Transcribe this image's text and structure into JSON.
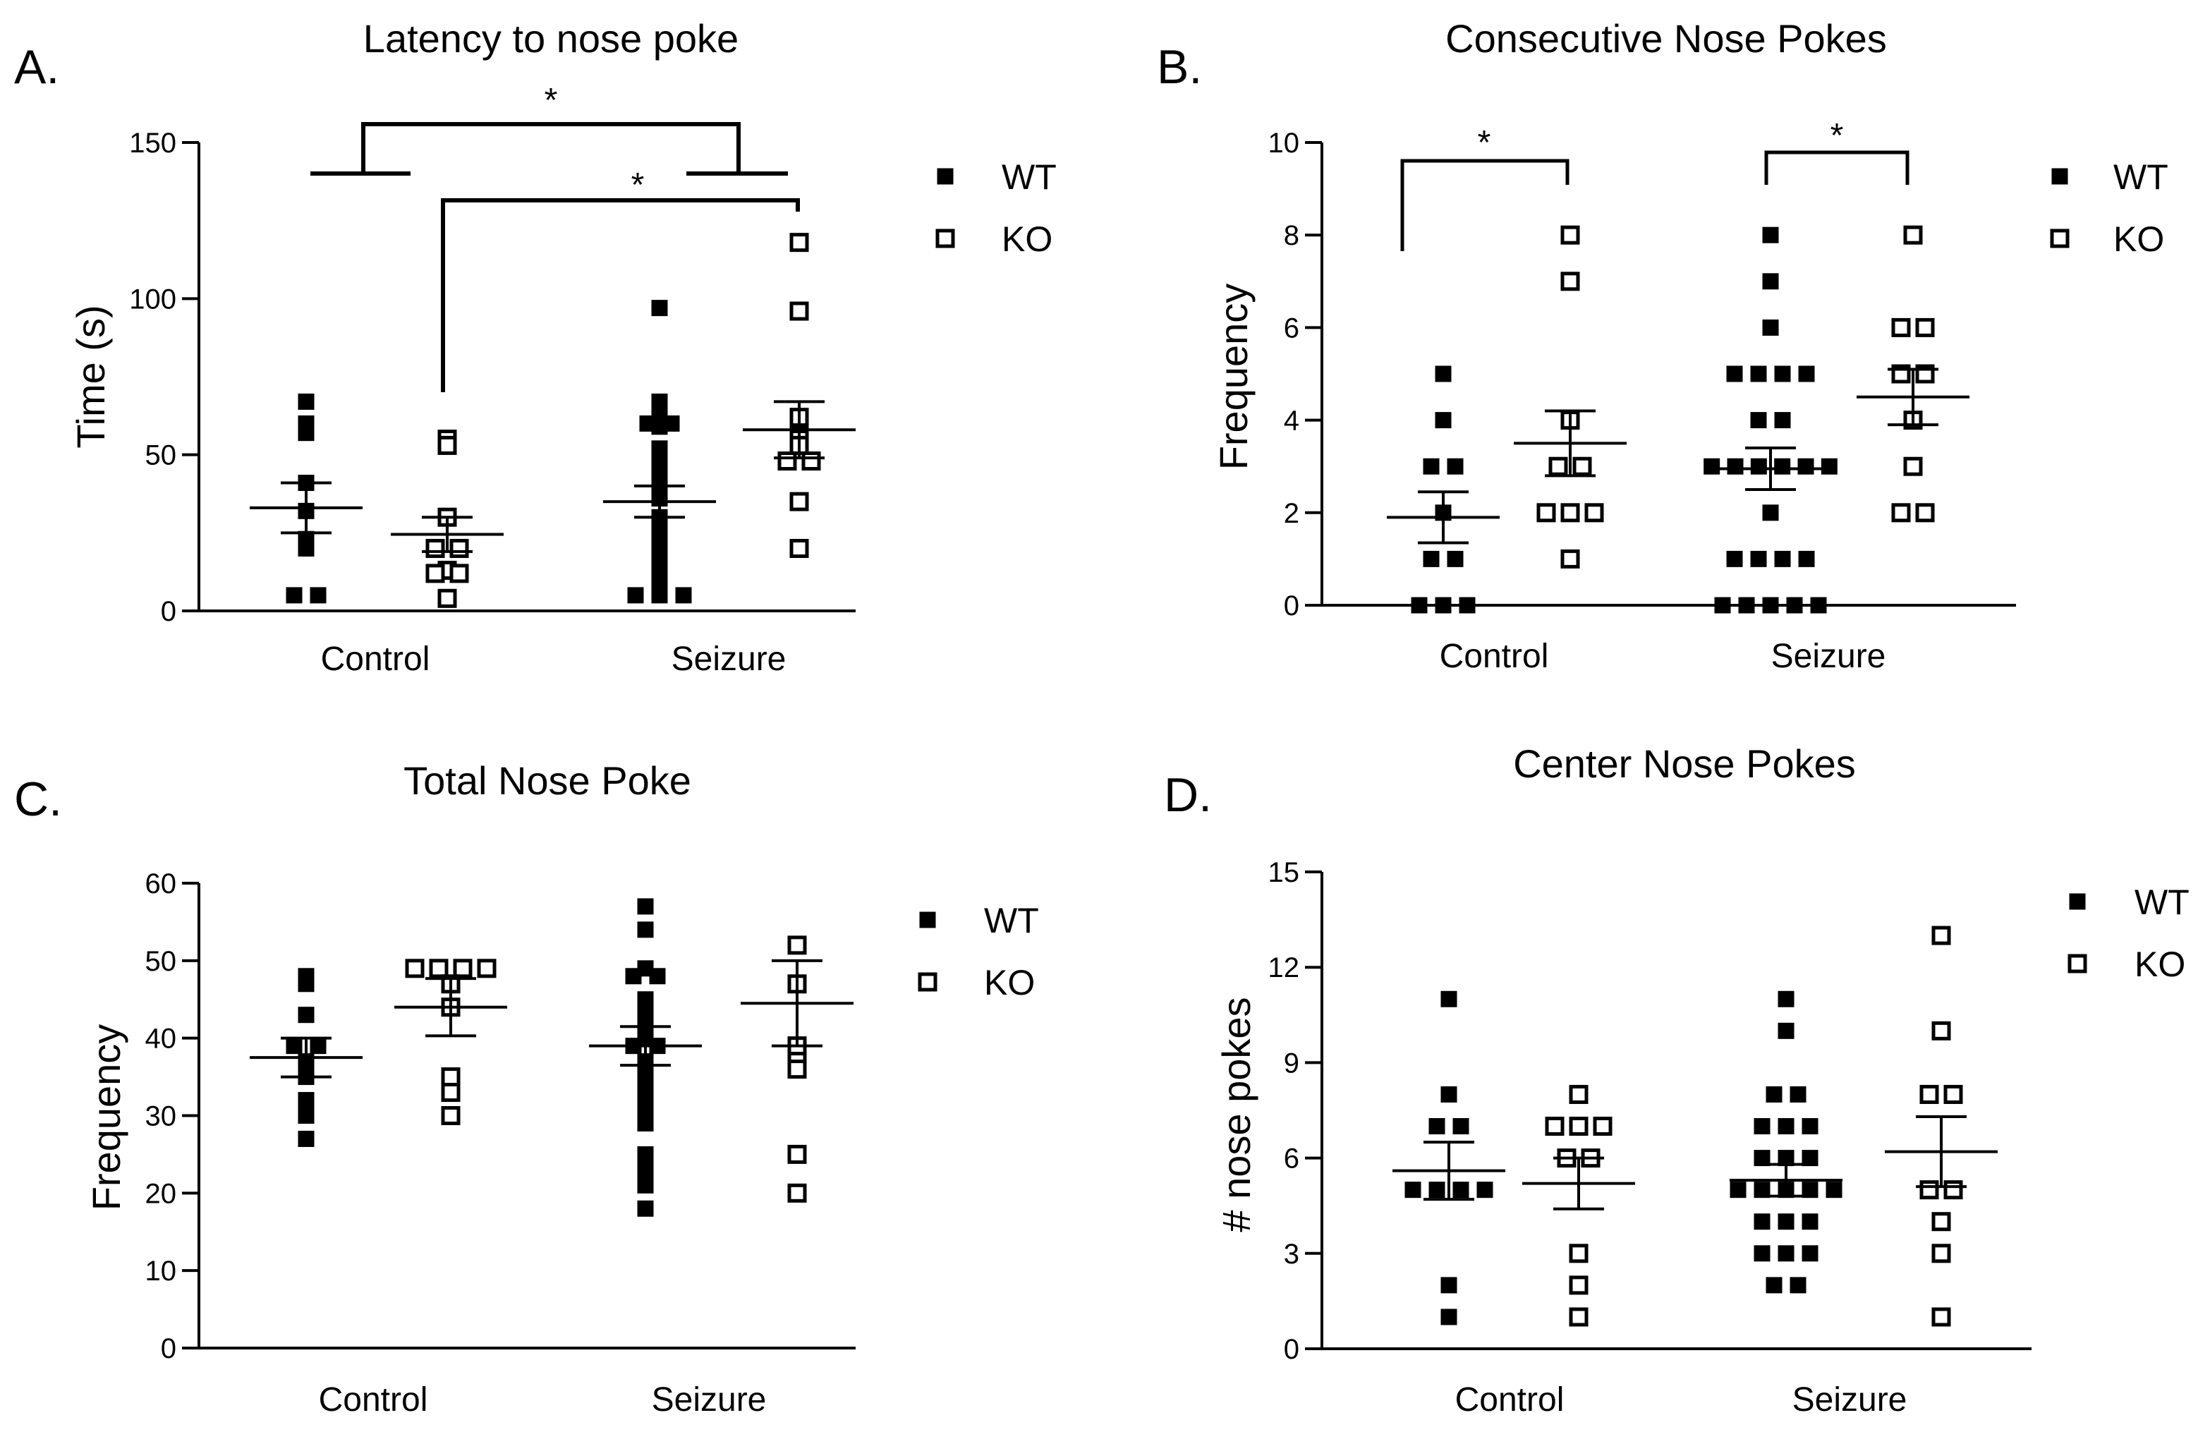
{
  "figure": {
    "colors": {
      "wt": "#000000",
      "ko": "#ffffff",
      "stroke": "#000000"
    },
    "legend_marker_icons": {
      "WT": "filled-square-icon",
      "KO": "open-square-icon"
    }
  },
  "chart_data": [
    {
      "id": "A",
      "letter": "A.",
      "type": "scatter",
      "title": "Latency to nose poke",
      "xlabel": "",
      "ylabel": "Time (s)",
      "ylim": [
        0,
        150
      ],
      "yticks": [
        0,
        50,
        100,
        150
      ],
      "categories": [
        "Control",
        "Seizure"
      ],
      "legend": [
        {
          "name": "WT",
          "marker": "filled"
        },
        {
          "name": "KO",
          "marker": "open"
        }
      ],
      "legend_position": "top-right",
      "groups": [
        {
          "category": "Control",
          "series": "WT",
          "mean": 33,
          "sem": 8,
          "values": [
            67,
            58,
            60,
            57,
            41,
            32,
            23,
            20,
            5,
            5
          ]
        },
        {
          "category": "Control",
          "series": "KO",
          "mean": 24.5,
          "sem": 5.5,
          "values": [
            55,
            53,
            30,
            20,
            20,
            13,
            12,
            12,
            4
          ]
        },
        {
          "category": "Seizure",
          "series": "WT",
          "mean": 35,
          "sem": 5,
          "values": [
            97,
            67,
            65,
            62,
            60,
            60,
            59,
            52,
            50,
            45,
            40,
            36,
            30,
            28,
            25,
            22,
            20,
            18,
            15,
            10,
            5,
            5,
            5
          ]
        },
        {
          "category": "Seizure",
          "series": "KO",
          "mean": 58,
          "sem": 9,
          "values": [
            118,
            96,
            62,
            56,
            55,
            53,
            48,
            48,
            35,
            20
          ]
        }
      ],
      "significance": [
        {
          "label": "*",
          "type": "main_effect",
          "from": "Control",
          "to": "Seizure"
        },
        {
          "label": "*",
          "type": "pairwise",
          "from": "Control KO",
          "to": "Seizure KO"
        }
      ]
    },
    {
      "id": "B",
      "letter": "B.",
      "type": "scatter",
      "title": "Consecutive Nose Pokes",
      "xlabel": "",
      "ylabel": "Frequency",
      "ylim": [
        0,
        10
      ],
      "yticks": [
        0,
        2,
        4,
        6,
        8,
        10
      ],
      "categories": [
        "Control",
        "Seizure"
      ],
      "legend": [
        {
          "name": "WT",
          "marker": "filled"
        },
        {
          "name": "KO",
          "marker": "open"
        }
      ],
      "legend_position": "top-right",
      "groups": [
        {
          "category": "Control",
          "series": "WT",
          "mean": 1.9,
          "sem": 0.55,
          "values": [
            5,
            4,
            3,
            3,
            2,
            1,
            1,
            0,
            0,
            0
          ]
        },
        {
          "category": "Control",
          "series": "KO",
          "mean": 3.5,
          "sem": 0.7,
          "values": [
            8,
            7,
            4,
            3,
            3,
            2,
            2,
            2,
            1
          ]
        },
        {
          "category": "Seizure",
          "series": "WT",
          "mean": 2.95,
          "sem": 0.45,
          "values": [
            8,
            7,
            6,
            5,
            5,
            5,
            5,
            4,
            4,
            3,
            3,
            3,
            3,
            3,
            3,
            2,
            1,
            1,
            1,
            1,
            0,
            0,
            0,
            0,
            0
          ]
        },
        {
          "category": "Seizure",
          "series": "KO",
          "mean": 4.5,
          "sem": 0.6,
          "values": [
            8,
            6,
            6,
            5,
            5,
            4,
            3,
            2,
            2
          ]
        }
      ],
      "significance": [
        {
          "label": "*",
          "type": "pairwise",
          "from": "Control WT",
          "to": "Control KO"
        },
        {
          "label": "*",
          "type": "pairwise",
          "from": "Seizure WT",
          "to": "Seizure KO"
        }
      ]
    },
    {
      "id": "C",
      "letter": "C.",
      "type": "scatter",
      "title": "Total Nose Poke",
      "xlabel": "",
      "ylabel": "Frequency",
      "ylim": [
        0,
        60
      ],
      "yticks": [
        0,
        10,
        20,
        30,
        40,
        50,
        60
      ],
      "categories": [
        "Control",
        "Seizure"
      ],
      "legend": [
        {
          "name": "WT",
          "marker": "filled"
        },
        {
          "name": "KO",
          "marker": "open"
        }
      ],
      "legend_position": "top-right",
      "groups": [
        {
          "category": "Control",
          "series": "WT",
          "mean": 37.5,
          "sem": 2.5,
          "values": [
            48,
            47,
            43,
            39,
            39,
            37,
            35,
            32,
            30,
            27
          ]
        },
        {
          "category": "Control",
          "series": "KO",
          "mean": 44,
          "sem": 3.7,
          "values": [
            49,
            49,
            49,
            49,
            47,
            44,
            35,
            33,
            30
          ]
        },
        {
          "category": "Seizure",
          "series": "WT",
          "mean": 39,
          "sem": 2.5,
          "values": [
            57,
            54,
            49,
            48,
            48,
            45,
            44,
            43,
            42,
            41,
            40,
            39,
            39,
            37,
            35,
            33,
            31,
            30,
            29,
            25,
            23,
            21,
            18
          ]
        },
        {
          "category": "Seizure",
          "series": "KO",
          "mean": 44.5,
          "sem": 5.5,
          "values": [
            52,
            47,
            39,
            37,
            36,
            25,
            20
          ]
        }
      ],
      "significance": []
    },
    {
      "id": "D",
      "letter": "D.",
      "type": "scatter",
      "title": "Center Nose Pokes",
      "xlabel": "",
      "ylabel": "# nose pokes",
      "ylim": [
        0,
        15
      ],
      "yticks": [
        0,
        3,
        6,
        9,
        12,
        15
      ],
      "categories": [
        "Control",
        "Seizure"
      ],
      "legend": [
        {
          "name": "WT",
          "marker": "filled"
        },
        {
          "name": "KO",
          "marker": "open"
        }
      ],
      "legend_position": "top-right",
      "groups": [
        {
          "category": "Control",
          "series": "WT",
          "mean": 5.6,
          "sem": 0.9,
          "values": [
            11,
            8,
            7,
            7,
            5,
            5,
            5,
            5,
            2,
            1
          ]
        },
        {
          "category": "Control",
          "series": "KO",
          "mean": 5.2,
          "sem": 0.8,
          "values": [
            8,
            7,
            7,
            7,
            6,
            6,
            3,
            2,
            1
          ]
        },
        {
          "category": "Seizure",
          "series": "WT",
          "mean": 5.3,
          "sem": 0.5,
          "values": [
            11,
            10,
            8,
            8,
            7,
            7,
            7,
            6,
            6,
            6,
            5,
            5,
            5,
            5,
            5,
            4,
            4,
            4,
            3,
            3,
            3,
            2,
            2
          ]
        },
        {
          "category": "Seizure",
          "series": "KO",
          "mean": 6.2,
          "sem": 1.1,
          "values": [
            13,
            10,
            8,
            8,
            5,
            5,
            4,
            3,
            1
          ]
        }
      ],
      "significance": []
    }
  ]
}
